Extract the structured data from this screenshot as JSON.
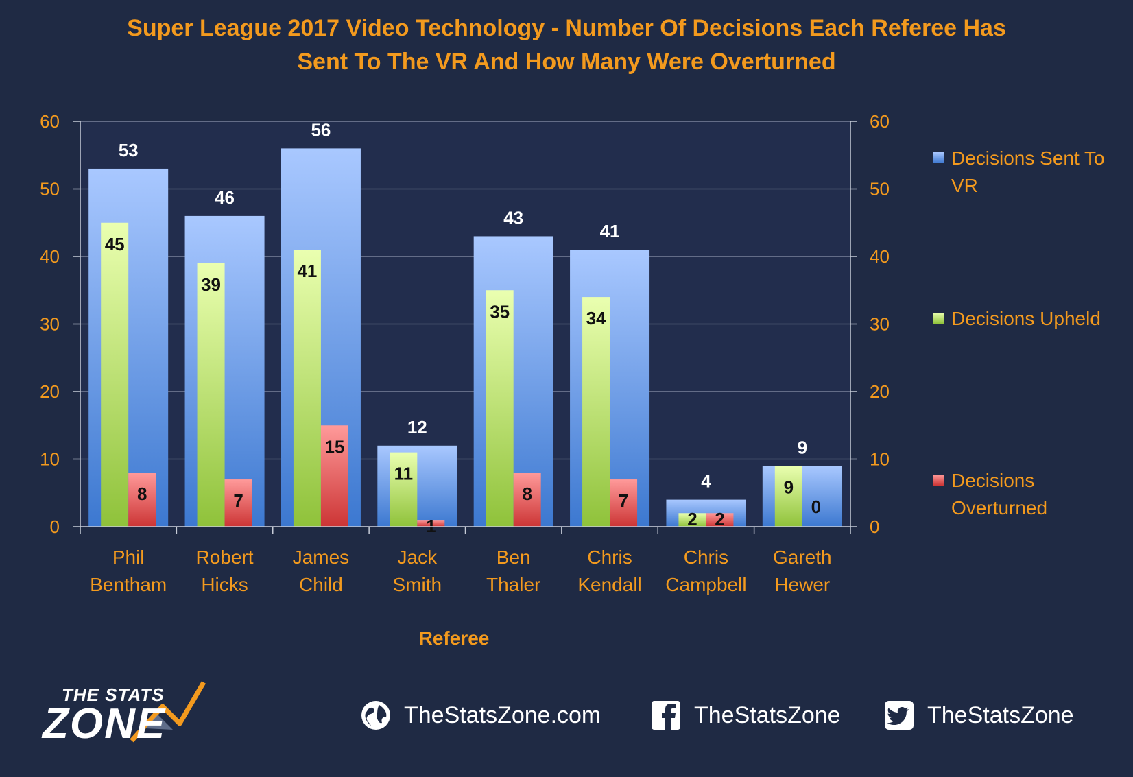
{
  "chart_data": {
    "type": "bar",
    "title_lines": [
      "Super League 2017 Video Technology - Number Of Decisions Each Referee Has",
      "Sent To The VR And How Many Were Overturned"
    ],
    "xlabel": "Referee",
    "ylabel": "",
    "ylim": [
      0,
      60
    ],
    "yticks": [
      0,
      10,
      20,
      30,
      40,
      50,
      60
    ],
    "categories": [
      [
        "Phil",
        "Bentham"
      ],
      [
        "Robert",
        "Hicks"
      ],
      [
        "James",
        "Child"
      ],
      [
        "Jack",
        "Smith"
      ],
      [
        "Ben",
        "Thaler"
      ],
      [
        "Chris",
        "Kendall"
      ],
      [
        "Chris",
        "Campbell"
      ],
      [
        "Gareth",
        "Hewer"
      ]
    ],
    "series": [
      {
        "name": "Decisions Sent To VR",
        "legend_lines": [
          "Decisions Sent To",
          "VR"
        ],
        "color": "#5b8fe0",
        "values": [
          53,
          46,
          56,
          12,
          43,
          41,
          4,
          9
        ]
      },
      {
        "name": "Decisions Upheld",
        "legend_lines": [
          "Decisions Upheld"
        ],
        "color": "#9ccc3c",
        "values": [
          45,
          39,
          41,
          11,
          35,
          34,
          2,
          9
        ]
      },
      {
        "name": "Decisions Overturned",
        "legend_lines": [
          "Decisions",
          "Overturned"
        ],
        "color": "#e04a4a",
        "values": [
          8,
          7,
          15,
          1,
          8,
          7,
          2,
          0
        ]
      }
    ],
    "grid": true,
    "legend_position": "right"
  },
  "footer": {
    "logo_line1": "THE STATS",
    "logo_line2": "ZONE",
    "website": "TheStatsZone.com",
    "facebook": "TheStatsZone",
    "twitter": "TheStatsZone",
    "website_icon": "globe-icon",
    "facebook_icon": "facebook-icon",
    "twitter_icon": "twitter-icon"
  }
}
